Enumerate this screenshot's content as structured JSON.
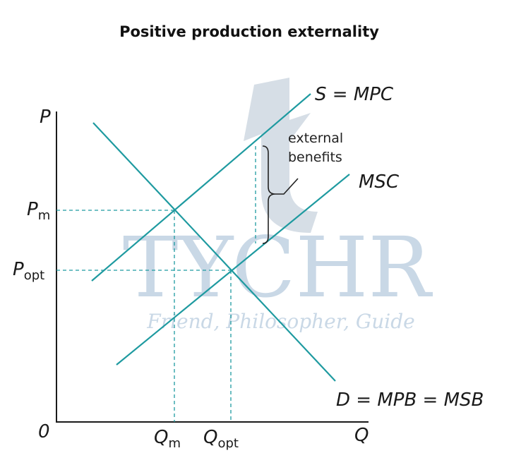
{
  "title": "Positive production externality",
  "axes": {
    "y_label": "P",
    "x_label": "Q",
    "origin": "0"
  },
  "price_labels": {
    "pm": {
      "main": "P",
      "sub": "m"
    },
    "popt": {
      "main": "P",
      "sub": "opt"
    }
  },
  "quantity_labels": {
    "qm": {
      "main": "Q",
      "sub": "m"
    },
    "qopt": {
      "main": "Q",
      "sub": "opt"
    }
  },
  "curves": {
    "supply": "S = MPC",
    "msc": "MSC",
    "demand": "D = MPB = MSB"
  },
  "annotation": {
    "line1": "external",
    "line2": "benefits"
  },
  "watermark": {
    "brand": "TYCHR",
    "tagline": "Friend, Philosopher, Guide"
  },
  "colors": {
    "curve": "#1e9aa0",
    "axis": "#1a1a1a",
    "watermark": "#c9d8e6"
  }
}
